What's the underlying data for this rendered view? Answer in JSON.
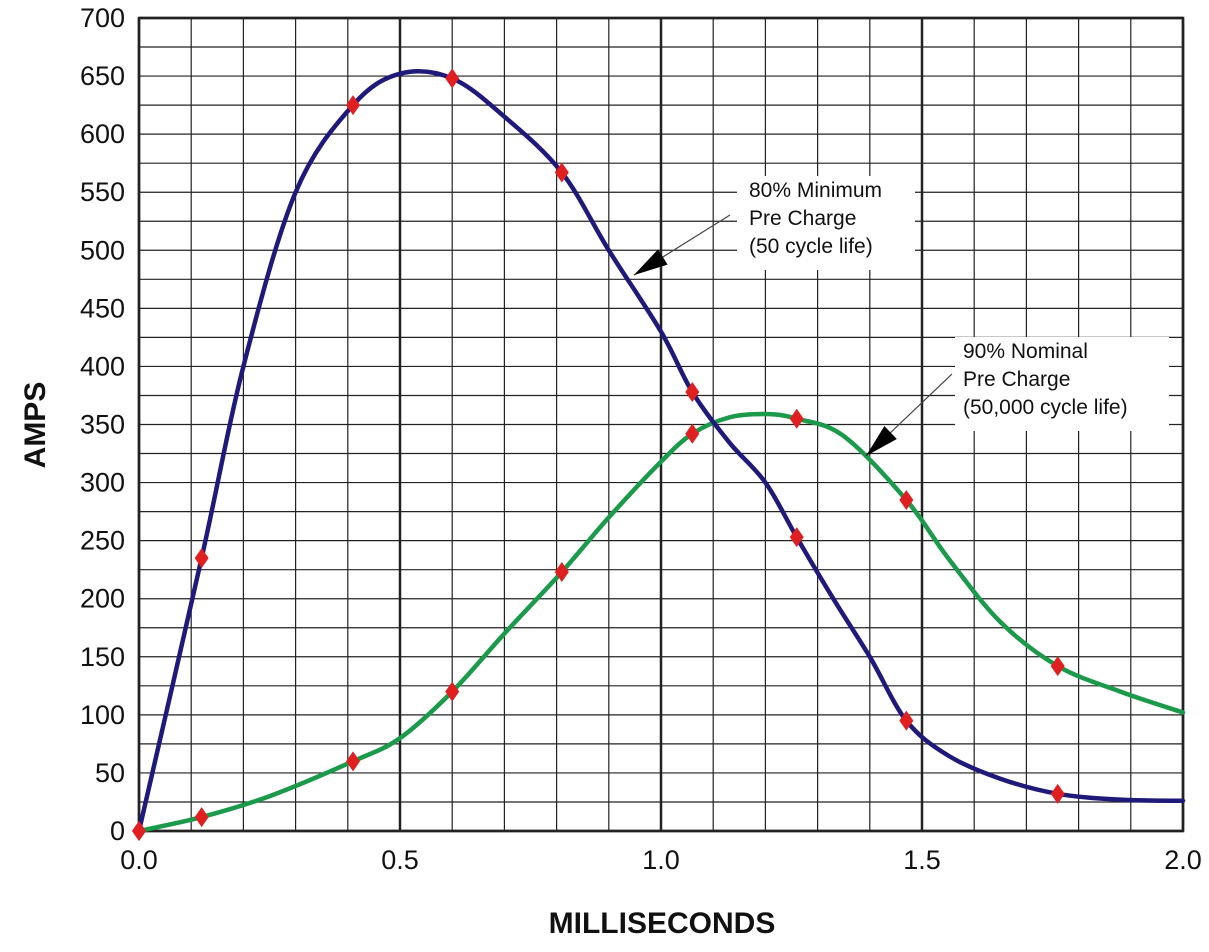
{
  "chart_data": {
    "type": "line",
    "title": "",
    "xlabel": "MILLISECONDS",
    "ylabel": "AMPS",
    "xlim": [
      0,
      2
    ],
    "ylim": [
      0,
      700
    ],
    "x_ticks": [
      "0.0",
      "0.5",
      "1.0",
      "1.5",
      "2.0"
    ],
    "y_ticks": [
      "0",
      "50",
      "100",
      "150",
      "200",
      "250",
      "300",
      "350",
      "400",
      "450",
      "500",
      "550",
      "600",
      "650",
      "700"
    ],
    "grid": "on",
    "colors": {
      "series_80": "#1f1a7a",
      "series_90": "#1a9a4a",
      "markers": "#e02020",
      "grid": "#222222"
    },
    "series": [
      {
        "key": "s80",
        "curve": [
          [
            0,
            0
          ],
          [
            0.12,
            235
          ],
          [
            0.2,
            400
          ],
          [
            0.3,
            550
          ],
          [
            0.41,
            625
          ],
          [
            0.5,
            652
          ],
          [
            0.6,
            648
          ],
          [
            0.7,
            615
          ],
          [
            0.81,
            567
          ],
          [
            0.9,
            500
          ],
          [
            1.0,
            430
          ],
          [
            1.06,
            378
          ],
          [
            1.13,
            335
          ],
          [
            1.2,
            300
          ],
          [
            1.26,
            253
          ],
          [
            1.33,
            200
          ],
          [
            1.4,
            150
          ],
          [
            1.47,
            95
          ],
          [
            1.55,
            65
          ],
          [
            1.65,
            45
          ],
          [
            1.76,
            32
          ],
          [
            1.88,
            27
          ],
          [
            2.0,
            26
          ]
        ],
        "markers": [
          [
            0,
            0
          ],
          [
            0.12,
            235
          ],
          [
            0.41,
            625
          ],
          [
            0.6,
            648
          ],
          [
            0.81,
            567
          ],
          [
            1.06,
            378
          ],
          [
            1.26,
            253
          ],
          [
            1.47,
            95
          ],
          [
            1.76,
            32
          ]
        ]
      },
      {
        "key": "s90",
        "curve": [
          [
            0,
            0
          ],
          [
            0.12,
            12
          ],
          [
            0.25,
            30
          ],
          [
            0.41,
            60
          ],
          [
            0.5,
            80
          ],
          [
            0.6,
            120
          ],
          [
            0.7,
            170
          ],
          [
            0.81,
            223
          ],
          [
            0.9,
            270
          ],
          [
            1.0,
            318
          ],
          [
            1.06,
            342
          ],
          [
            1.13,
            356
          ],
          [
            1.2,
            359
          ],
          [
            1.26,
            355
          ],
          [
            1.35,
            340
          ],
          [
            1.47,
            285
          ],
          [
            1.55,
            235
          ],
          [
            1.65,
            180
          ],
          [
            1.76,
            142
          ],
          [
            1.88,
            120
          ],
          [
            2.0,
            102
          ]
        ],
        "markers": [
          [
            0,
            0
          ],
          [
            0.12,
            12
          ],
          [
            0.41,
            60
          ],
          [
            0.6,
            120
          ],
          [
            0.81,
            223
          ],
          [
            1.06,
            342
          ],
          [
            1.26,
            355
          ],
          [
            1.47,
            285
          ],
          [
            1.76,
            142
          ]
        ]
      }
    ],
    "annotations": [
      {
        "lines": [
          "80% Minimum",
          "Pre Charge",
          "(50 cycle life)"
        ]
      },
      {
        "lines": [
          "90% Nominal",
          "Pre Charge",
          "(50,000 cycle life)"
        ]
      }
    ]
  }
}
